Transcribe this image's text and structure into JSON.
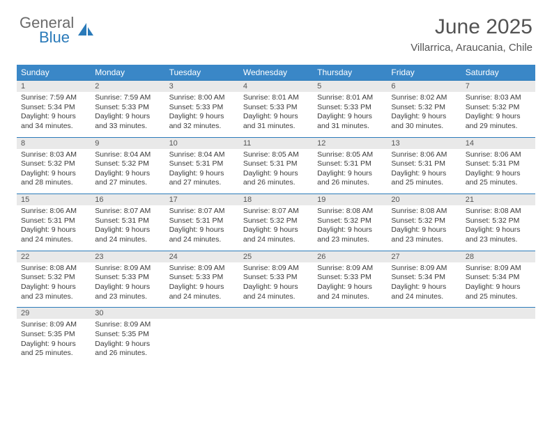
{
  "logo": {
    "line1": "General",
    "line2": "Blue"
  },
  "title": "June 2025",
  "location": "Villarrica, Araucania, Chile",
  "colors": {
    "header_bg": "#3a87c7",
    "border": "#2a7ab9",
    "daynum_bg": "#e9e9e9",
    "text": "#333333"
  },
  "day_labels": [
    "Sunday",
    "Monday",
    "Tuesday",
    "Wednesday",
    "Thursday",
    "Friday",
    "Saturday"
  ],
  "weeks": [
    {
      "nums": [
        "1",
        "2",
        "3",
        "4",
        "5",
        "6",
        "7"
      ],
      "cells": [
        {
          "sunrise": "Sunrise: 7:59 AM",
          "sunset": "Sunset: 5:34 PM",
          "dl1": "Daylight: 9 hours",
          "dl2": "and 34 minutes."
        },
        {
          "sunrise": "Sunrise: 7:59 AM",
          "sunset": "Sunset: 5:33 PM",
          "dl1": "Daylight: 9 hours",
          "dl2": "and 33 minutes."
        },
        {
          "sunrise": "Sunrise: 8:00 AM",
          "sunset": "Sunset: 5:33 PM",
          "dl1": "Daylight: 9 hours",
          "dl2": "and 32 minutes."
        },
        {
          "sunrise": "Sunrise: 8:01 AM",
          "sunset": "Sunset: 5:33 PM",
          "dl1": "Daylight: 9 hours",
          "dl2": "and 31 minutes."
        },
        {
          "sunrise": "Sunrise: 8:01 AM",
          "sunset": "Sunset: 5:33 PM",
          "dl1": "Daylight: 9 hours",
          "dl2": "and 31 minutes."
        },
        {
          "sunrise": "Sunrise: 8:02 AM",
          "sunset": "Sunset: 5:32 PM",
          "dl1": "Daylight: 9 hours",
          "dl2": "and 30 minutes."
        },
        {
          "sunrise": "Sunrise: 8:03 AM",
          "sunset": "Sunset: 5:32 PM",
          "dl1": "Daylight: 9 hours",
          "dl2": "and 29 minutes."
        }
      ]
    },
    {
      "nums": [
        "8",
        "9",
        "10",
        "11",
        "12",
        "13",
        "14"
      ],
      "cells": [
        {
          "sunrise": "Sunrise: 8:03 AM",
          "sunset": "Sunset: 5:32 PM",
          "dl1": "Daylight: 9 hours",
          "dl2": "and 28 minutes."
        },
        {
          "sunrise": "Sunrise: 8:04 AM",
          "sunset": "Sunset: 5:32 PM",
          "dl1": "Daylight: 9 hours",
          "dl2": "and 27 minutes."
        },
        {
          "sunrise": "Sunrise: 8:04 AM",
          "sunset": "Sunset: 5:31 PM",
          "dl1": "Daylight: 9 hours",
          "dl2": "and 27 minutes."
        },
        {
          "sunrise": "Sunrise: 8:05 AM",
          "sunset": "Sunset: 5:31 PM",
          "dl1": "Daylight: 9 hours",
          "dl2": "and 26 minutes."
        },
        {
          "sunrise": "Sunrise: 8:05 AM",
          "sunset": "Sunset: 5:31 PM",
          "dl1": "Daylight: 9 hours",
          "dl2": "and 26 minutes."
        },
        {
          "sunrise": "Sunrise: 8:06 AM",
          "sunset": "Sunset: 5:31 PM",
          "dl1": "Daylight: 9 hours",
          "dl2": "and 25 minutes."
        },
        {
          "sunrise": "Sunrise: 8:06 AM",
          "sunset": "Sunset: 5:31 PM",
          "dl1": "Daylight: 9 hours",
          "dl2": "and 25 minutes."
        }
      ]
    },
    {
      "nums": [
        "15",
        "16",
        "17",
        "18",
        "19",
        "20",
        "21"
      ],
      "cells": [
        {
          "sunrise": "Sunrise: 8:06 AM",
          "sunset": "Sunset: 5:31 PM",
          "dl1": "Daylight: 9 hours",
          "dl2": "and 24 minutes."
        },
        {
          "sunrise": "Sunrise: 8:07 AM",
          "sunset": "Sunset: 5:31 PM",
          "dl1": "Daylight: 9 hours",
          "dl2": "and 24 minutes."
        },
        {
          "sunrise": "Sunrise: 8:07 AM",
          "sunset": "Sunset: 5:31 PM",
          "dl1": "Daylight: 9 hours",
          "dl2": "and 24 minutes."
        },
        {
          "sunrise": "Sunrise: 8:07 AM",
          "sunset": "Sunset: 5:32 PM",
          "dl1": "Daylight: 9 hours",
          "dl2": "and 24 minutes."
        },
        {
          "sunrise": "Sunrise: 8:08 AM",
          "sunset": "Sunset: 5:32 PM",
          "dl1": "Daylight: 9 hours",
          "dl2": "and 23 minutes."
        },
        {
          "sunrise": "Sunrise: 8:08 AM",
          "sunset": "Sunset: 5:32 PM",
          "dl1": "Daylight: 9 hours",
          "dl2": "and 23 minutes."
        },
        {
          "sunrise": "Sunrise: 8:08 AM",
          "sunset": "Sunset: 5:32 PM",
          "dl1": "Daylight: 9 hours",
          "dl2": "and 23 minutes."
        }
      ]
    },
    {
      "nums": [
        "22",
        "23",
        "24",
        "25",
        "26",
        "27",
        "28"
      ],
      "cells": [
        {
          "sunrise": "Sunrise: 8:08 AM",
          "sunset": "Sunset: 5:32 PM",
          "dl1": "Daylight: 9 hours",
          "dl2": "and 23 minutes."
        },
        {
          "sunrise": "Sunrise: 8:09 AM",
          "sunset": "Sunset: 5:33 PM",
          "dl1": "Daylight: 9 hours",
          "dl2": "and 23 minutes."
        },
        {
          "sunrise": "Sunrise: 8:09 AM",
          "sunset": "Sunset: 5:33 PM",
          "dl1": "Daylight: 9 hours",
          "dl2": "and 24 minutes."
        },
        {
          "sunrise": "Sunrise: 8:09 AM",
          "sunset": "Sunset: 5:33 PM",
          "dl1": "Daylight: 9 hours",
          "dl2": "and 24 minutes."
        },
        {
          "sunrise": "Sunrise: 8:09 AM",
          "sunset": "Sunset: 5:33 PM",
          "dl1": "Daylight: 9 hours",
          "dl2": "and 24 minutes."
        },
        {
          "sunrise": "Sunrise: 8:09 AM",
          "sunset": "Sunset: 5:34 PM",
          "dl1": "Daylight: 9 hours",
          "dl2": "and 24 minutes."
        },
        {
          "sunrise": "Sunrise: 8:09 AM",
          "sunset": "Sunset: 5:34 PM",
          "dl1": "Daylight: 9 hours",
          "dl2": "and 25 minutes."
        }
      ]
    },
    {
      "nums": [
        "29",
        "30",
        "",
        "",
        "",
        "",
        ""
      ],
      "cells": [
        {
          "sunrise": "Sunrise: 8:09 AM",
          "sunset": "Sunset: 5:35 PM",
          "dl1": "Daylight: 9 hours",
          "dl2": "and 25 minutes."
        },
        {
          "sunrise": "Sunrise: 8:09 AM",
          "sunset": "Sunset: 5:35 PM",
          "dl1": "Daylight: 9 hours",
          "dl2": "and 26 minutes."
        },
        {
          "empty": true
        },
        {
          "empty": true
        },
        {
          "empty": true
        },
        {
          "empty": true
        },
        {
          "empty": true
        }
      ]
    }
  ]
}
